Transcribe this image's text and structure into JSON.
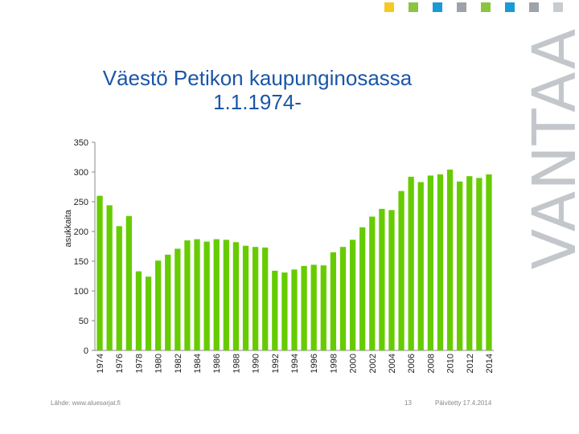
{
  "slide": {
    "title_line1": "Väestö Petikon kaupunginosassa",
    "title_line2": "1.1.1974-",
    "brand_text": "VANTAA",
    "brand_color": "#c3c7cc",
    "title_color": "#1a56a8",
    "accent_squares": [
      "#f7c925",
      "#8bc53f",
      "#1a9ad6",
      "#9ea3a9",
      "#8bc53f",
      "#1a9ad6",
      "#9ea3a9",
      "#c8cbcf"
    ],
    "source": "Lähde: www.aluesarjat.fi",
    "page_number": "13",
    "updated": "Päivitetty 17.4.2014"
  },
  "chart_data": {
    "type": "bar",
    "title": "Väestö Petikon kaupunginosassa 1.1.1974-",
    "xlabel": "",
    "ylabel": "asukkaita",
    "ylim": [
      0,
      350
    ],
    "yticks": [
      0,
      50,
      100,
      150,
      200,
      250,
      300,
      350
    ],
    "grid": false,
    "bar_color": "#66cc00",
    "tick_labels": [
      "1974",
      "1976",
      "1978",
      "1980",
      "1982",
      "1984",
      "1986",
      "1988",
      "1990",
      "1992",
      "1994",
      "1996",
      "1998",
      "2000",
      "2002",
      "2004",
      "2006",
      "2008",
      "2010",
      "2012",
      "2014"
    ],
    "categories": [
      "1974",
      "1975",
      "1976",
      "1977",
      "1978",
      "1979",
      "1980",
      "1981",
      "1982",
      "1983",
      "1984",
      "1985",
      "1986",
      "1987",
      "1988",
      "1989",
      "1990",
      "1991",
      "1992",
      "1993",
      "1994",
      "1995",
      "1996",
      "1997",
      "1998",
      "1999",
      "2000",
      "2001",
      "2002",
      "2003",
      "2004",
      "2005",
      "2006",
      "2007",
      "2008",
      "2009",
      "2010",
      "2011",
      "2012",
      "2013",
      "2014"
    ],
    "values": [
      260,
      244,
      209,
      226,
      133,
      124,
      151,
      161,
      171,
      185,
      187,
      183,
      187,
      186,
      182,
      176,
      174,
      173,
      134,
      131,
      136,
      142,
      144,
      143,
      165,
      174,
      186,
      207,
      225,
      238,
      236,
      268,
      292,
      283,
      294,
      296,
      304,
      284,
      293,
      290,
      296
    ]
  }
}
